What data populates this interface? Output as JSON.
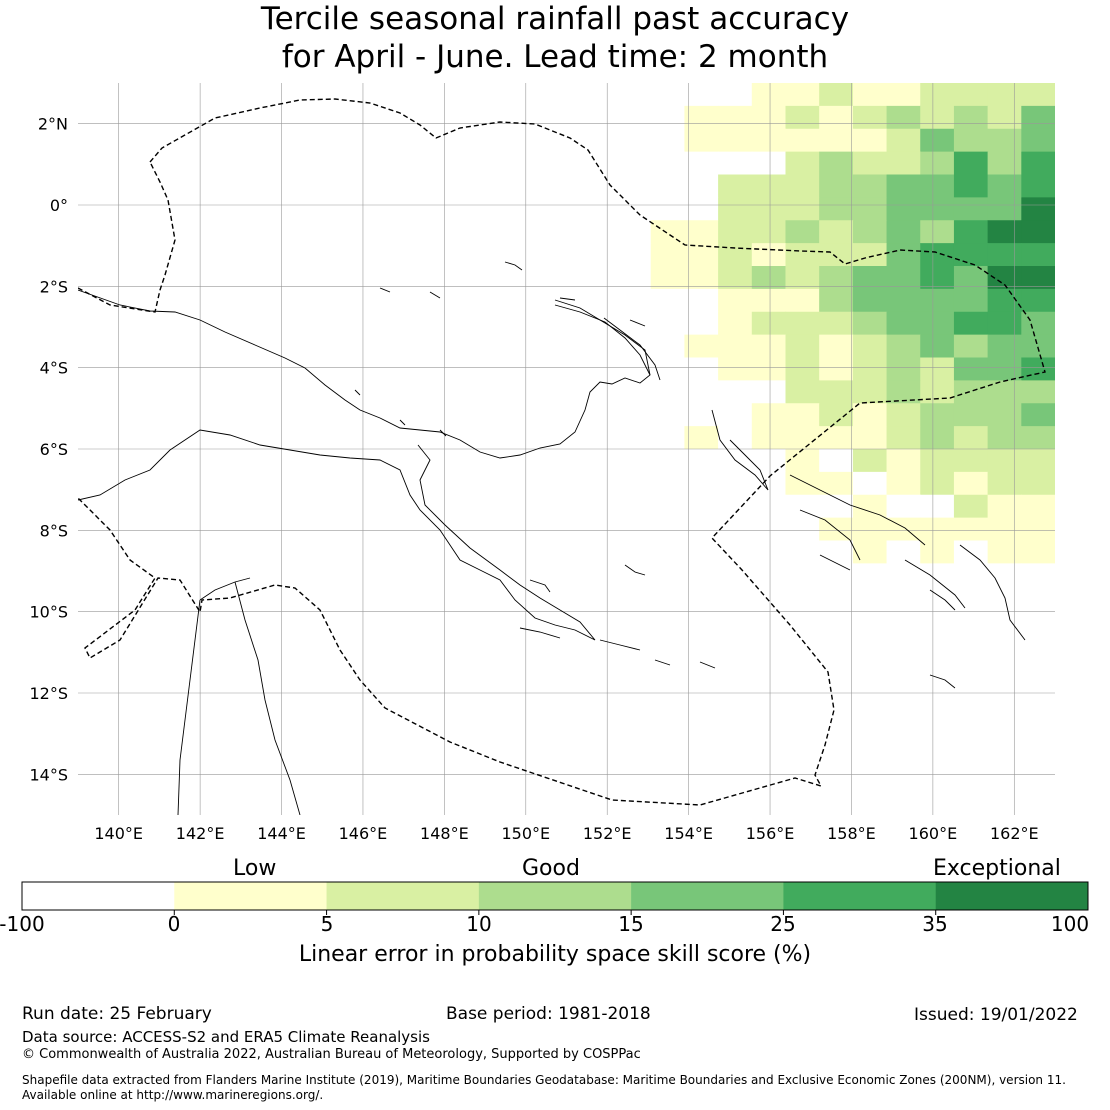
{
  "title": {
    "line1": "Tercile seasonal rainfall past accuracy",
    "line2": "for April - June. Lead time: 2 month"
  },
  "map": {
    "lat_labels": [
      "2°N",
      "0°",
      "2°S",
      "4°S",
      "6°S",
      "8°S",
      "10°S",
      "12°S",
      "14°S"
    ],
    "lon_labels": [
      "140°E",
      "142°E",
      "144°E",
      "146°E",
      "148°E",
      "150°E",
      "152°E",
      "154°E",
      "156°E",
      "158°E",
      "160°E",
      "162°E"
    ],
    "extent": {
      "lon_min": 139.0,
      "lon_max": 163.0,
      "lat_min": -15.0,
      "lat_max": 3.0
    }
  },
  "legend": {
    "category_labels": [
      "Low",
      "Good",
      "Exceptional"
    ],
    "ticks": [
      "-100",
      "0",
      "5",
      "10",
      "15",
      "25",
      "35",
      "100"
    ],
    "colors": [
      "#ffffff",
      "#ffffcc",
      "#d9f0a3",
      "#addd8e",
      "#78c679",
      "#41ab5d",
      "#238443"
    ],
    "title": "Linear error in probability space skill score (%)"
  },
  "footer": {
    "run_date": "Run date: 25 February",
    "base_period": "Base period: 1981-2018",
    "issued": "Issued: 19/01/2022",
    "data_source": "Data source: ACCESS-S2 and ERA5 Climate Reanalysis",
    "copyright": "© Commonwealth of Australia 2022, Australian Bureau of Meteorology, Supported by COSPPac",
    "shapefile_line1": "Shapefile data extracted from Flanders Marine Institute (2019), Maritime Boundaries Geodatabase: Maritime Boundaries and Exclusive Economic Zones (200NM), version 11.",
    "shapefile_line2": "Available online at http://www.marineregions.org/."
  }
}
